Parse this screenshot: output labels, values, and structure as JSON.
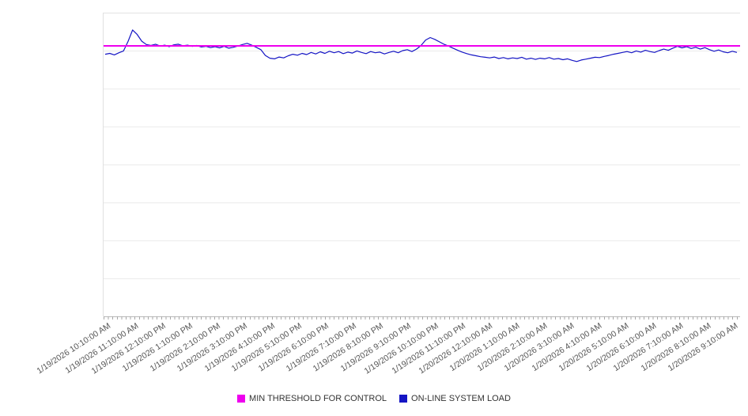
{
  "chart_data": {
    "type": "line",
    "title": "",
    "xlabel": "",
    "ylabel": "",
    "ylim": [
      0,
      100
    ],
    "y_axis_labels_visible": false,
    "gridlines": "horizontal",
    "gridline_divisions": 8,
    "legend_position": "bottom",
    "background": "#ffffff",
    "categories": [
      "1/19/2026 10:10:00 AM",
      "1/19/2026 11:10:00 AM",
      "1/19/2026 12:10:00 PM",
      "1/19/2026 1:10:00 PM",
      "1/19/2026 2:10:00 PM",
      "1/19/2026 3:10:00 PM",
      "1/19/2026 4:10:00 PM",
      "1/19/2026 5:10:00 PM",
      "1/19/2026 6:10:00 PM",
      "1/19/2026 7:10:00 PM",
      "1/19/2026 8:10:00 PM",
      "1/19/2026 9:10:00 PM",
      "1/19/2026 10:10:00 PM",
      "1/19/2026 11:10:00 PM",
      "1/20/2026 12:10:00 AM",
      "1/20/2026 1:10:00 AM",
      "1/20/2026 2:10:00 AM",
      "1/20/2026 3:10:00 AM",
      "1/20/2026 4:10:00 AM",
      "1/20/2026 5:10:00 AM",
      "1/20/2026 6:10:00 AM",
      "1/20/2026 7:10:00 AM",
      "1/20/2026 8:10:00 AM",
      "1/20/2026 9:10:00 AM"
    ],
    "series": [
      {
        "name": "MIN THRESHOLD FOR CONTROL",
        "kind": "constant-threshold",
        "value": 89,
        "color": "#ee00ee"
      },
      {
        "name": "ON-LINE SYSTEM LOAD",
        "kind": "line",
        "color": "#1515c4",
        "sample_interval_minutes": 10,
        "values": [
          86.3,
          86.6,
          86.1,
          86.8,
          87.4,
          90.5,
          94.3,
          92.8,
          90.6,
          89.5,
          89.2,
          89.6,
          89.0,
          89.3,
          88.8,
          89.4,
          89.6,
          89.1,
          89.3,
          88.9,
          89.2,
          88.7,
          88.9,
          88.5,
          88.8,
          88.4,
          88.9,
          88.3,
          88.6,
          89.0,
          89.5,
          89.9,
          89.3,
          88.6,
          87.8,
          85.9,
          85.0,
          84.8,
          85.4,
          85.1,
          85.8,
          86.3,
          86.0,
          86.6,
          86.2,
          86.9,
          86.4,
          87.1,
          86.6,
          87.3,
          86.8,
          87.2,
          86.5,
          87.0,
          86.7,
          87.4,
          86.9,
          86.5,
          87.2,
          86.8,
          87.0,
          86.4,
          86.9,
          87.3,
          86.8,
          87.5,
          87.8,
          87.2,
          88.0,
          89.2,
          91.0,
          91.8,
          91.2,
          90.4,
          89.6,
          89.0,
          88.3,
          87.6,
          87.0,
          86.5,
          86.1,
          85.8,
          85.5,
          85.3,
          85.1,
          85.4,
          84.9,
          85.2,
          84.8,
          85.1,
          84.9,
          85.3,
          84.7,
          85.0,
          84.6,
          85.0,
          84.8,
          85.2,
          84.7,
          84.9,
          84.5,
          84.8,
          84.3,
          83.9,
          84.4,
          84.7,
          85.0,
          85.3,
          85.2,
          85.6,
          85.9,
          86.3,
          86.6,
          86.9,
          87.2,
          86.8,
          87.4,
          87.0,
          87.6,
          87.2,
          86.9,
          87.5,
          88.0,
          87.6,
          88.3,
          88.9,
          88.4,
          88.8,
          88.2,
          88.6,
          88.0,
          88.5,
          87.8,
          87.3,
          87.7,
          87.1,
          86.8,
          87.3,
          86.9
        ]
      }
    ]
  }
}
